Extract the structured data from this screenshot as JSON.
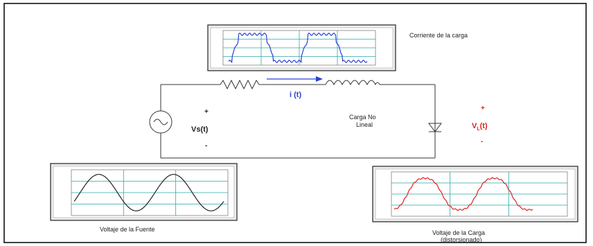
{
  "labels": {
    "current_caption": "Corriente de la carga",
    "current_symbol": "i  (t)",
    "source_plus": "+",
    "source_minus": "-",
    "source_voltage": "Vs(t)",
    "load_type_line1": "Carga No",
    "load_type_line2": "Lineal",
    "load_plus": "+",
    "load_minus": "-",
    "load_voltage_main": "V",
    "load_voltage_sub": "L",
    "load_voltage_suffix": "(t)",
    "source_caption": "Voltaje de la Fuente",
    "load_caption_line1": "Voltaje de la  Carga",
    "load_caption_line2": "(distorsionado)"
  },
  "colors": {
    "current_wave": "#2a3fd6",
    "source_wave": "#222222",
    "load_wave": "#e02020",
    "arrow": "#2a3fd6",
    "grid": "#2aa7a7",
    "load_label": "#e02020",
    "current_label": "#2a3fd6"
  }
}
